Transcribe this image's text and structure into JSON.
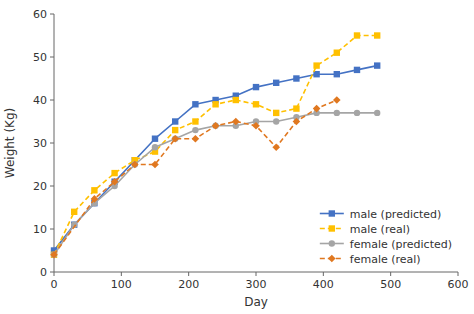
{
  "chart_data": {
    "type": "line",
    "xlabel": "Day",
    "ylabel": "Weight (Kg)",
    "xlim": [
      0,
      600
    ],
    "ylim": [
      0,
      60
    ],
    "xticks": [
      0,
      100,
      200,
      300,
      400,
      500,
      600
    ],
    "yticks": [
      0,
      10,
      20,
      30,
      40,
      50,
      60
    ],
    "grid": false,
    "legend": "lower right",
    "series": [
      {
        "name": "male (predicted)",
        "color": "#4472C4",
        "marker": "square",
        "line_style": "solid",
        "x": [
          0,
          30,
          60,
          90,
          120,
          150,
          180,
          210,
          240,
          270,
          300,
          330,
          360,
          390,
          420,
          450,
          480
        ],
        "values": [
          5,
          11,
          16,
          21,
          26,
          31,
          35,
          39,
          40,
          41,
          43,
          44,
          45,
          46,
          46,
          47,
          48
        ]
      },
      {
        "name": "male (real)",
        "color": "#FFC000",
        "marker": "square",
        "line_style": "dashed",
        "x": [
          0,
          30,
          60,
          90,
          120,
          150,
          180,
          210,
          240,
          270,
          300,
          330,
          360,
          390,
          420,
          450,
          480
        ],
        "values": [
          4,
          14,
          19,
          23,
          26,
          28,
          33,
          35,
          39,
          40,
          39,
          37,
          38,
          48,
          51,
          55,
          55
        ]
      },
      {
        "name": "female (predicted)",
        "color": "#A5A5A5",
        "marker": "circle",
        "line_style": "solid",
        "x": [
          0,
          30,
          60,
          90,
          120,
          150,
          180,
          210,
          240,
          270,
          300,
          330,
          360,
          390,
          420,
          450,
          480
        ],
        "values": [
          4,
          11,
          16,
          20,
          25,
          29,
          31,
          33,
          34,
          34,
          35,
          35,
          36,
          37,
          37,
          37,
          37
        ]
      },
      {
        "name": "female (real)",
        "color": "#E07820",
        "marker": "diamond",
        "line_style": "dashed",
        "x": [
          0,
          60,
          90,
          120,
          150,
          180,
          210,
          240,
          270,
          300,
          330,
          360,
          390,
          420
        ],
        "values": [
          4,
          17,
          21,
          25,
          25,
          31,
          31,
          34,
          35,
          34,
          29,
          35,
          38,
          40
        ]
      }
    ]
  }
}
